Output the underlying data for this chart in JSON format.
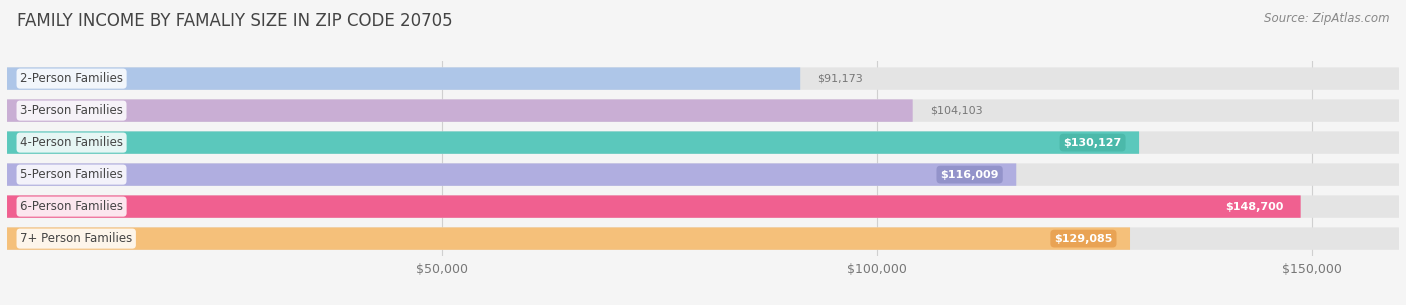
{
  "title": "FAMILY INCOME BY FAMALIY SIZE IN ZIP CODE 20705",
  "source": "Source: ZipAtlas.com",
  "categories": [
    "2-Person Families",
    "3-Person Families",
    "4-Person Families",
    "5-Person Families",
    "6-Person Families",
    "7+ Person Families"
  ],
  "values": [
    91173,
    104103,
    130127,
    116009,
    148700,
    129085
  ],
  "labels": [
    "$91,173",
    "$104,103",
    "$130,127",
    "$116,009",
    "$148,700",
    "$129,085"
  ],
  "bar_colors": [
    "#aec6e8",
    "#c9aed4",
    "#5bc8bc",
    "#b0aee0",
    "#f06090",
    "#f5c07a"
  ],
  "bar_bg_color": "#e4e4e4",
  "label_outside": [
    true,
    true,
    false,
    false,
    false,
    false
  ],
  "label_text_colors_outside": [
    "#888888",
    "#888888",
    "#ffffff",
    "#ffffff",
    "#ffffff",
    "#ffffff"
  ],
  "label_pill_colors": [
    null,
    null,
    "#4ab8a8",
    "#9090c8",
    null,
    "#e8a050"
  ],
  "xlim_max": 160000,
  "xticks": [
    0,
    50000,
    100000,
    150000
  ],
  "xticklabels": [
    "",
    "$50,000",
    "$100,000",
    "$150,000"
  ],
  "background_color": "#f5f5f5",
  "title_fontsize": 12,
  "source_fontsize": 8.5,
  "bar_label_fontsize": 8,
  "category_fontsize": 8.5,
  "bar_height": 0.7,
  "bar_gap": 0.3
}
